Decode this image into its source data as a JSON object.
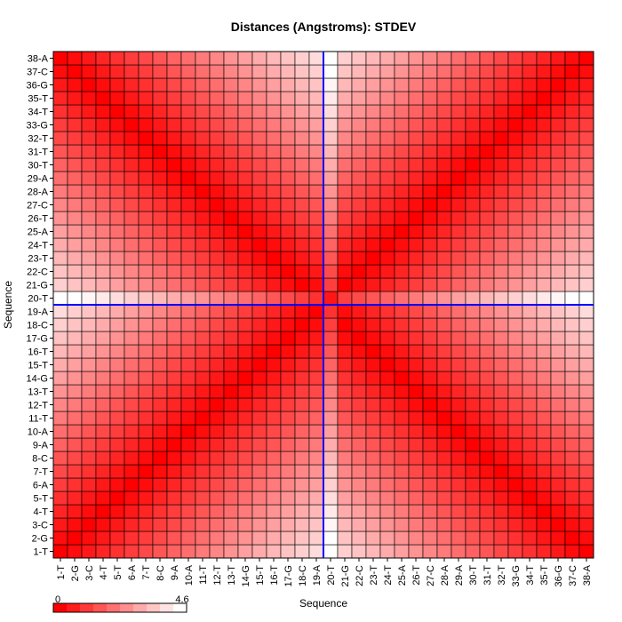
{
  "chart_data": {
    "type": "heatmap",
    "title": "Distances (Angstroms):  STDEV",
    "xlabel": "Sequence",
    "ylabel": "Sequence",
    "labels": [
      "1-T",
      "2-G",
      "3-C",
      "4-T",
      "5-T",
      "6-A",
      "7-T",
      "8-C",
      "9-A",
      "10-A",
      "11-T",
      "12-T",
      "13-T",
      "14-G",
      "15-T",
      "16-T",
      "17-G",
      "18-C",
      "19-A",
      "20-T",
      "21-G",
      "22-C",
      "23-T",
      "24-T",
      "25-A",
      "26-T",
      "27-C",
      "28-A",
      "29-A",
      "30-T",
      "31-T",
      "32-T",
      "33-G",
      "34-T",
      "35-T",
      "36-G",
      "37-C",
      "38-A"
    ],
    "value_range": [
      0,
      4.6
    ],
    "colors": {
      "low": "#ff0000",
      "high": "#ffffff",
      "crosshair": "#0000ff",
      "grid": "#000000"
    },
    "highlight": {
      "row": "20-T",
      "col": "20-T"
    },
    "legend": {
      "min_label": "0",
      "max_label": "4.6",
      "steps": 10
    },
    "value_model": "approximate: value = 0.22*min(|i-j|,|(39-i)-j|) + boost for index 20, capped at 4.6"
  }
}
